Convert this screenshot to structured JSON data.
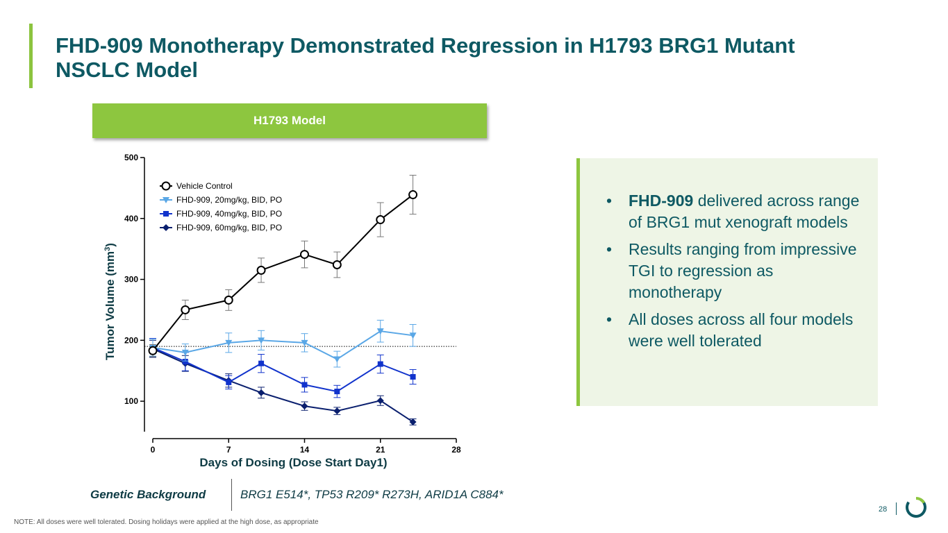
{
  "slide": {
    "title": "FHD-909 Monotherapy Demonstrated Regression in H1793 BRG1 Mutant NSCLC Model",
    "model_banner": "H1793 Model",
    "bullets": [
      {
        "bullet": "•",
        "bold": "FHD-909",
        "text": " delivered across range of BRG1 mut xenograft models"
      },
      {
        "bullet": "•",
        "bold": "",
        "text": "Results ranging from impressive TGI to regression as monotherapy"
      },
      {
        "bullet": "•",
        "bold": "",
        "text": "All doses across all four models were well tolerated"
      }
    ],
    "genetic_label": "Genetic Background",
    "genetic_value": "BRG1 E514*, TP53 R209* R273H, ARID1A C884*",
    "note": "NOTE:  All doses were well tolerated. Dosing holidays were applied at the high dose, as appropriate",
    "page_number": "28",
    "colors": {
      "title": "#0e5963",
      "accent_green": "#8dc63f",
      "panel_bg": "#eef5e6"
    }
  },
  "chart_data": {
    "type": "line",
    "xlabel": "Days of Dosing (Dose Start Day1)",
    "ylabel": "Tumor Volume (mm",
    "ylabel_sup": "3",
    "ylabel_close": ")",
    "xlim": [
      0,
      28
    ],
    "ylim": [
      50,
      500
    ],
    "x_ticks": [
      0,
      7,
      14,
      21,
      28
    ],
    "y_ticks": [
      100,
      200,
      300,
      400,
      500
    ],
    "reference_line_y": 190,
    "legend_position": "top-left",
    "x": [
      0,
      3,
      7,
      10,
      14,
      17,
      21,
      24
    ],
    "series": [
      {
        "name": "Vehicle Control",
        "color": "#000000",
        "marker": "circle-open",
        "values": [
          183,
          250,
          266,
          315,
          341,
          324,
          398,
          439
        ],
        "errors": [
          10,
          16,
          17,
          20,
          22,
          21,
          28,
          32
        ]
      },
      {
        "name": "FHD-909, 20mg/kg, BID, PO",
        "color": "#5aa7e6",
        "marker": "triangle-down",
        "values": [
          188,
          180,
          196,
          200,
          196,
          169,
          215,
          208
        ],
        "errors": [
          14,
          14,
          16,
          16,
          15,
          13,
          18,
          18
        ]
      },
      {
        "name": "FHD-909, 40mg/kg, BID, PO",
        "color": "#1133cc",
        "marker": "square",
        "values": [
          188,
          165,
          131,
          162,
          127,
          116,
          161,
          140
        ],
        "errors": [
          15,
          15,
          11,
          15,
          12,
          10,
          15,
          12
        ]
      },
      {
        "name": "FHD-909, 60mg/kg, BID, PO",
        "color": "#0a1f6e",
        "marker": "diamond",
        "values": [
          186,
          162,
          134,
          114,
          92,
          84,
          101,
          66
        ],
        "errors": [
          14,
          13,
          11,
          9,
          7,
          6,
          8,
          5
        ]
      }
    ]
  }
}
